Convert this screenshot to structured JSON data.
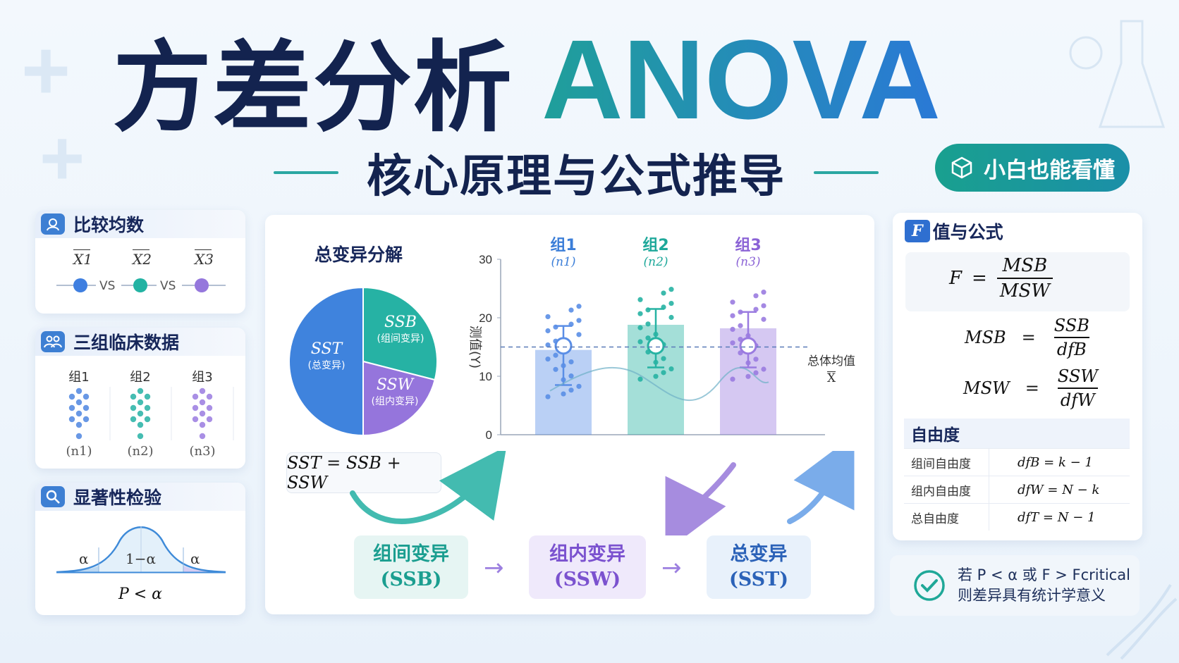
{
  "title": {
    "cn": "方差分析",
    "en": "ANOVA"
  },
  "subtitle": "核心原理与公式推导",
  "badge": {
    "icon": "cube-icon",
    "label": "小白也能看懂"
  },
  "left_cards": {
    "compare": {
      "title": "比较均数",
      "means": [
        "X1",
        "X2",
        "X3"
      ],
      "vs": "VS",
      "colors": [
        "#3f7fe0",
        "#23b3a3",
        "#9577dc"
      ]
    },
    "clinical": {
      "title": "三组临床数据",
      "groups": [
        "组1",
        "组2",
        "组3"
      ],
      "ns": [
        "(n1)",
        "(n2)",
        "(n3)"
      ]
    },
    "significance": {
      "title": "显著性检验",
      "alpha_left": "α",
      "center": "1−α",
      "alpha_right": "α",
      "rule": "P < α"
    }
  },
  "decomp": {
    "title": "总变异分解",
    "pie": [
      {
        "label": "SST",
        "note": "(总变异)",
        "share": 0.5,
        "color": "#3f83dd"
      },
      {
        "label": "SSB",
        "note": "(组间变异)",
        "share": 0.29,
        "color": "#26b2a4"
      },
      {
        "label": "SSW",
        "note": "(组内变异)",
        "share": 0.21,
        "color": "#9575dc"
      }
    ],
    "equation": "SST = SSB + SSW"
  },
  "flow": [
    {
      "label": "组间变异",
      "sym": "(SSB)"
    },
    {
      "label": "组内变异",
      "sym": "(SSW)"
    },
    {
      "label": "总变异",
      "sym": "(SST)"
    }
  ],
  "chart_data": {
    "type": "bar",
    "categories": [
      "组1",
      "组2",
      "组3"
    ],
    "category_ns": [
      "(n1)",
      "(n2)",
      "(n3)"
    ],
    "values": [
      14.5,
      18.8,
      18.2
    ],
    "means": [
      15.2,
      15.2,
      15.2
    ],
    "err_low": [
      8.5,
      11.5,
      11.5
    ],
    "err_high": [
      18.6,
      21.5,
      21.0
    ],
    "colors": [
      "#5a8ee6",
      "#27b3a3",
      "#9a7be0"
    ],
    "ylim": [
      0,
      30
    ],
    "yticks": [
      0,
      10,
      20,
      30
    ],
    "ylabel": "测值(Y)",
    "grand_mean": 15,
    "grand_mean_label": "总体均值",
    "grand_mean_sym": "X"
  },
  "f_panel": {
    "title_f": "F",
    "title_rest": "值与公式",
    "f_formula": {
      "lhs": "F",
      "num": "MSB",
      "den": "MSW"
    },
    "msb_formula": {
      "lhs": "MSB",
      "num": "SSB",
      "den": "dfB"
    },
    "msw_formula": {
      "lhs": "MSW",
      "num": "SSW",
      "den": "dfW"
    },
    "dof_title": "自由度",
    "dof_rows": [
      {
        "k": "组间自由度",
        "v": "dfB = k − 1"
      },
      {
        "k": "组内自由度",
        "v": "dfW = N − k"
      },
      {
        "k": "总自由度",
        "v": "dfT = N − 1"
      }
    ]
  },
  "conclusion": {
    "line1": "若 P < α 或 F > Fcritical",
    "line2": "则差异具有统计学意义"
  }
}
